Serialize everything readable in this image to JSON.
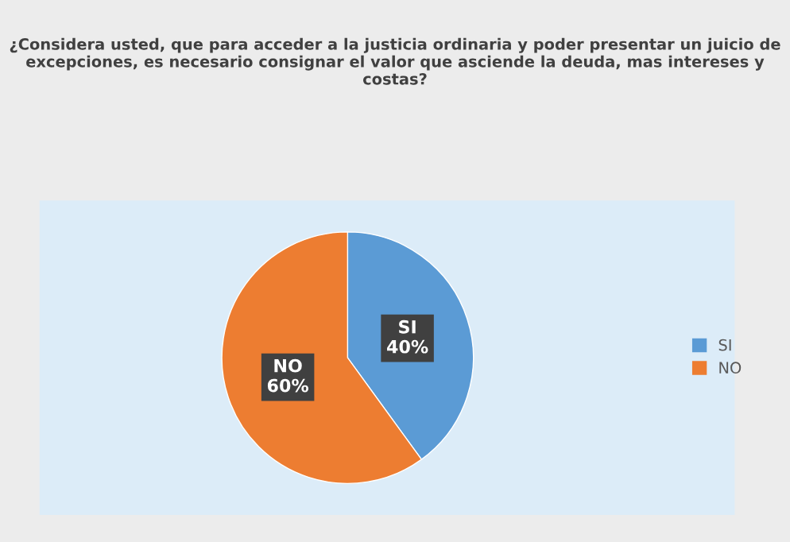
{
  "chart_data": {
    "type": "pie",
    "title": "¿Considera usted, que para acceder a la justicia ordinaria y poder presentar un juicio de excepciones, es necesario consignar el valor que asciende la deuda, mas intereses y costas?",
    "categories": [
      "SI",
      "NO"
    ],
    "values": [
      40,
      60
    ],
    "value_labels": [
      "40%",
      "60%"
    ],
    "colors": [
      "#5b9bd5",
      "#ed7d31"
    ],
    "legend": "right"
  }
}
